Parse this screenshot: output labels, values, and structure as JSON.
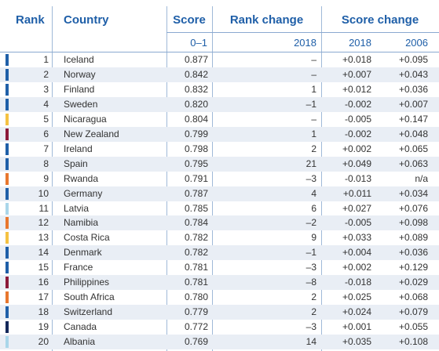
{
  "headers": {
    "rank": "Rank",
    "country": "Country",
    "score": "Score",
    "rank_change": "Rank change",
    "score_change": "Score change"
  },
  "subheaders": {
    "score": "0–1",
    "rank_change": "2018",
    "score_change_2018": "2018",
    "score_change_2006": "2006"
  },
  "rows": [
    {
      "rank": "1",
      "country": "Iceland",
      "score": "0.877",
      "rank_change": "–",
      "score_change_2018": "+0.018",
      "score_change_2006": "+0.095",
      "color": "#1f5fa8"
    },
    {
      "rank": "2",
      "country": "Norway",
      "score": "0.842",
      "rank_change": "–",
      "score_change_2018": "+0.007",
      "score_change_2006": "+0.043",
      "color": "#1f5fa8"
    },
    {
      "rank": "3",
      "country": "Finland",
      "score": "0.832",
      "rank_change": "1",
      "score_change_2018": "+0.012",
      "score_change_2006": "+0.036",
      "color": "#1f5fa8"
    },
    {
      "rank": "4",
      "country": "Sweden",
      "score": "0.820",
      "rank_change": "–1",
      "score_change_2018": "-0.002",
      "score_change_2006": "+0.007",
      "color": "#1f5fa8"
    },
    {
      "rank": "5",
      "country": "Nicaragua",
      "score": "0.804",
      "rank_change": "–",
      "score_change_2018": "-0.005",
      "score_change_2006": "+0.147",
      "color": "#f5c242"
    },
    {
      "rank": "6",
      "country": "New Zealand",
      "score": "0.799",
      "rank_change": "1",
      "score_change_2018": "-0.002",
      "score_change_2006": "+0.048",
      "color": "#8b1a3a"
    },
    {
      "rank": "7",
      "country": "Ireland",
      "score": "0.798",
      "rank_change": "2",
      "score_change_2018": "+0.002",
      "score_change_2006": "+0.065",
      "color": "#1f5fa8"
    },
    {
      "rank": "8",
      "country": "Spain",
      "score": "0.795",
      "rank_change": "21",
      "score_change_2018": "+0.049",
      "score_change_2006": "+0.063",
      "color": "#1f5fa8"
    },
    {
      "rank": "9",
      "country": "Rwanda",
      "score": "0.791",
      "rank_change": "–3",
      "score_change_2018": "-0.013",
      "score_change_2006": "n/a",
      "color": "#e8772e"
    },
    {
      "rank": "10",
      "country": "Germany",
      "score": "0.787",
      "rank_change": "4",
      "score_change_2018": "+0.011",
      "score_change_2006": "+0.034",
      "color": "#1f5fa8"
    },
    {
      "rank": "11",
      "country": "Latvia",
      "score": "0.785",
      "rank_change": "6",
      "score_change_2018": "+0.027",
      "score_change_2006": "+0.076",
      "color": "#a9d6ea"
    },
    {
      "rank": "12",
      "country": "Namibia",
      "score": "0.784",
      "rank_change": "–2",
      "score_change_2018": "-0.005",
      "score_change_2006": "+0.098",
      "color": "#e8772e"
    },
    {
      "rank": "13",
      "country": "Costa Rica",
      "score": "0.782",
      "rank_change": "9",
      "score_change_2018": "+0.033",
      "score_change_2006": "+0.089",
      "color": "#f5c242"
    },
    {
      "rank": "14",
      "country": "Denmark",
      "score": "0.782",
      "rank_change": "–1",
      "score_change_2018": "+0.004",
      "score_change_2006": "+0.036",
      "color": "#1f5fa8"
    },
    {
      "rank": "15",
      "country": "France",
      "score": "0.781",
      "rank_change": "–3",
      "score_change_2018": "+0.002",
      "score_change_2006": "+0.129",
      "color": "#1f5fa8"
    },
    {
      "rank": "16",
      "country": "Philippines",
      "score": "0.781",
      "rank_change": "–8",
      "score_change_2018": "-0.018",
      "score_change_2006": "+0.029",
      "color": "#8b1a3a"
    },
    {
      "rank": "17",
      "country": "South Africa",
      "score": "0.780",
      "rank_change": "2",
      "score_change_2018": "+0.025",
      "score_change_2006": "+0.068",
      "color": "#e8772e"
    },
    {
      "rank": "18",
      "country": "Switzerland",
      "score": "0.779",
      "rank_change": "2",
      "score_change_2018": "+0.024",
      "score_change_2006": "+0.079",
      "color": "#1f5fa8"
    },
    {
      "rank": "19",
      "country": "Canada",
      "score": "0.772",
      "rank_change": "–3",
      "score_change_2018": "+0.001",
      "score_change_2006": "+0.055",
      "color": "#14285a"
    },
    {
      "rank": "20",
      "country": "Albania",
      "score": "0.769",
      "rank_change": "14",
      "score_change_2018": "+0.035",
      "score_change_2006": "+0.108",
      "color": "#a9d6ea"
    }
  ]
}
